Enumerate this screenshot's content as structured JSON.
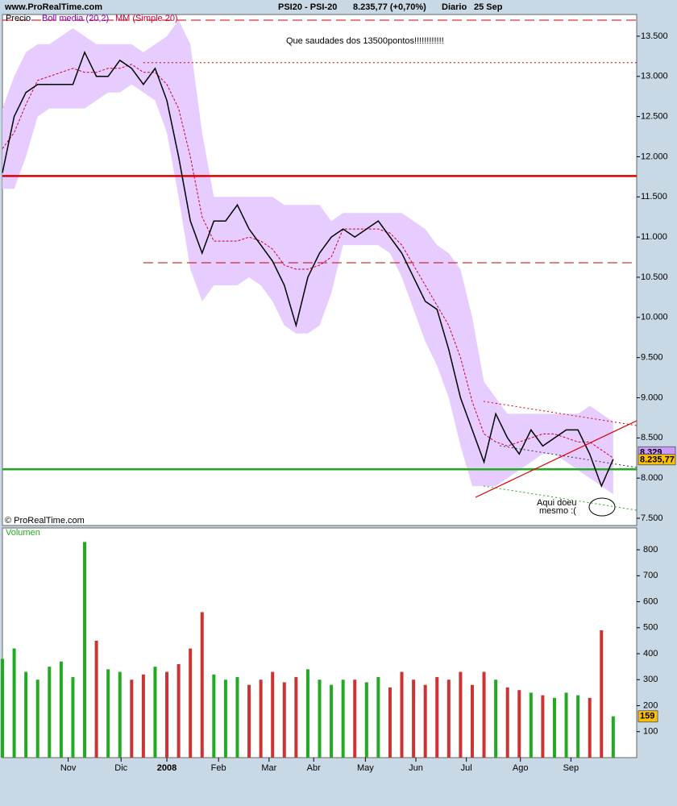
{
  "header": {
    "site": "www.ProRealTime.com",
    "instrument": "PSI20 - PSI-20",
    "quote": "8.235,77 (+0,70%)",
    "period": "Diario",
    "date": "25 Sep"
  },
  "chart_data": [
    {
      "type": "line",
      "legend_label": "Precio",
      "copyright": "© ProRealTime.com",
      "xlim": [
        0,
        54
      ],
      "xticks": [
        {
          "value": 5.6,
          "label": "Nov"
        },
        {
          "value": 10.1,
          "label": "Dic"
        },
        {
          "value": 14.0,
          "label": "2008"
        },
        {
          "value": 18.4,
          "label": "Feb"
        },
        {
          "value": 22.7,
          "label": "Mar"
        },
        {
          "value": 26.5,
          "label": "Abr"
        },
        {
          "value": 30.9,
          "label": "May"
        },
        {
          "value": 35.2,
          "label": "Jun"
        },
        {
          "value": 39.5,
          "label": "Jul"
        },
        {
          "value": 44.1,
          "label": "Ago"
        },
        {
          "value": 48.4,
          "label": "Sep"
        }
      ],
      "ylim": [
        7410,
        13770
      ],
      "yticks": [
        {
          "value": 7500,
          "label": "7.500"
        },
        {
          "value": 8000,
          "label": "8.000"
        },
        {
          "value": 8500,
          "label": "8.500"
        },
        {
          "value": 9000,
          "label": "9.000"
        },
        {
          "value": 9500,
          "label": "9.500"
        },
        {
          "value": 10000,
          "label": "10.000"
        },
        {
          "value": 10500,
          "label": "10.500"
        },
        {
          "value": 11000,
          "label": "11.000"
        },
        {
          "value": 11500,
          "label": "11.500"
        },
        {
          "value": 12000,
          "label": "12.000"
        },
        {
          "value": 12500,
          "label": "12.500"
        },
        {
          "value": 13000,
          "label": "13.000"
        },
        {
          "value": 13500,
          "label": "13.500"
        }
      ],
      "x": [
        0,
        1,
        2,
        3,
        4,
        5,
        6,
        7,
        8,
        9,
        10,
        11,
        12,
        13,
        14,
        15,
        16,
        17,
        18,
        19,
        20,
        21,
        22,
        23,
        24,
        25,
        26,
        27,
        28,
        29,
        30,
        31,
        32,
        33,
        34,
        35,
        36,
        37,
        38,
        39,
        40,
        41,
        42,
        43,
        44,
        45,
        46,
        47,
        48,
        49,
        50,
        51,
        52
      ],
      "band": {
        "name": "Boll media (20,2)",
        "color": "#e6ccff",
        "name_color": "#8000c0",
        "upper": [
          12600,
          13000,
          13300,
          13400,
          13400,
          13500,
          13600,
          13500,
          13400,
          13400,
          13400,
          13400,
          13300,
          13400,
          13500,
          13700,
          13400,
          12300,
          11500,
          11500,
          11500,
          11500,
          11500,
          11500,
          11400,
          11400,
          11400,
          11400,
          11200,
          11300,
          11300,
          11300,
          11300,
          11300,
          11300,
          11200,
          11100,
          10900,
          10800,
          10600,
          10000,
          9200,
          9000,
          8800,
          8800,
          8800,
          8800,
          8800,
          8800,
          8800,
          8900,
          8800,
          8700
        ],
        "lower": [
          11600,
          11600,
          12000,
          12500,
          12600,
          12600,
          12600,
          12600,
          12700,
          12800,
          12800,
          12900,
          12800,
          12700,
          12300,
          11500,
          10600,
          10200,
          10400,
          10400,
          10400,
          10500,
          10400,
          10200,
          9900,
          9800,
          9800,
          9900,
          10300,
          10900,
          10900,
          10900,
          10900,
          10800,
          10500,
          10100,
          9700,
          9400,
          9000,
          8400,
          7900,
          7900,
          7900,
          8000,
          8100,
          8200,
          8300,
          8300,
          8200,
          8100,
          8000,
          7900,
          7800
        ]
      },
      "series": [
        {
          "name": "MM (Simple 20)",
          "color": "#cc0033",
          "values": [
            12100,
            12300,
            12650,
            12950,
            13000,
            13050,
            13100,
            13050,
            13050,
            13100,
            13100,
            13150,
            13050,
            13050,
            12900,
            12600,
            12000,
            11250,
            10950,
            10950,
            10950,
            11000,
            10950,
            10850,
            10650,
            10600,
            10600,
            10650,
            10750,
            11100,
            11100,
            11100,
            11100,
            11050,
            10900,
            10650,
            10400,
            10150,
            9900,
            9500,
            8950,
            8550,
            8450,
            8400,
            8450,
            8500,
            8550,
            8550,
            8500,
            8450,
            8450,
            8350,
            8250
          ]
        },
        {
          "name": "Precio",
          "color": "#000000",
          "values": [
            11800,
            12500,
            12800,
            12900,
            12900,
            12900,
            12900,
            13300,
            13000,
            13000,
            13200,
            13100,
            12900,
            13100,
            12700,
            12000,
            11200,
            10800,
            11200,
            11200,
            11400,
            11100,
            10900,
            10700,
            10400,
            9900,
            10500,
            10800,
            11000,
            11100,
            11000,
            11100,
            11200,
            11000,
            10800,
            10500,
            10200,
            10100,
            9600,
            9000,
            8600,
            8200,
            8800,
            8500,
            8300,
            8600,
            8400,
            8500,
            8600,
            8600,
            8300,
            7900,
            8236
          ]
        }
      ],
      "levels": [
        {
          "value": 13700,
          "color": "#cc0000",
          "style": "dashed",
          "x_start": 0
        },
        {
          "value": 13170,
          "color": "#cc0000",
          "style": "dotted",
          "x_start": 12
        },
        {
          "value": 11760,
          "color": "#dd0000",
          "style": "solid",
          "x_start": 0
        },
        {
          "value": 10680,
          "color": "#cc0000",
          "style": "dashed",
          "x_start": 12
        },
        {
          "value": 8110,
          "color": "#22aa22",
          "style": "solid",
          "x_start": 0
        }
      ],
      "price_labels": [
        {
          "value": 8329,
          "label": "8.329",
          "color": "#cc99ff"
        },
        {
          "value": 8235.77,
          "label": "8.235,77",
          "color": "#ffc000"
        }
      ],
      "annotations": [
        "Que saudades dos 13500pontos!!!!!!!!!!!!",
        "Aqui doeu",
        "mesmo :("
      ]
    },
    {
      "type": "bar",
      "title": "Volumen",
      "up_color": "#22aa22",
      "down_color": "#cc3333",
      "xlim": [
        0,
        54
      ],
      "ylim": [
        0,
        884
      ],
      "yticks": [
        100,
        200,
        300,
        400,
        500,
        600,
        700,
        800
      ],
      "x": [
        0,
        1,
        2,
        3,
        4,
        5,
        6,
        7,
        8,
        9,
        10,
        11,
        12,
        13,
        14,
        15,
        16,
        17,
        18,
        19,
        20,
        21,
        22,
        23,
        24,
        25,
        26,
        27,
        28,
        29,
        30,
        31,
        32,
        33,
        34,
        35,
        36,
        37,
        38,
        39,
        40,
        41,
        42,
        43,
        44,
        45,
        46,
        47,
        48,
        49,
        50,
        51,
        52
      ],
      "values": [
        380,
        420,
        330,
        300,
        350,
        370,
        310,
        830,
        450,
        340,
        330,
        300,
        320,
        350,
        330,
        360,
        420,
        560,
        320,
        300,
        310,
        280,
        300,
        330,
        290,
        310,
        340,
        300,
        280,
        300,
        300,
        290,
        310,
        270,
        330,
        300,
        280,
        310,
        300,
        330,
        280,
        330,
        300,
        270,
        260,
        250,
        240,
        230,
        250,
        240,
        230,
        490,
        159
      ],
      "last_label": {
        "value": 159,
        "label": "159"
      }
    }
  ]
}
